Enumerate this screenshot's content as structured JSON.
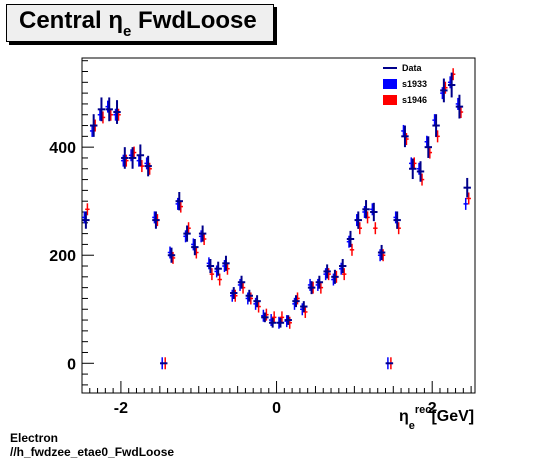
{
  "title": {
    "main": "Central",
    "symbol": "η",
    "subscript": "e",
    "suffix": "FwdLoose"
  },
  "footer": {
    "line1": "Electron",
    "line2": "//h_fwdzee_etae0_FwdLoose"
  },
  "chart_data": {
    "type": "scatter",
    "title": "Central η_e FwdLoose",
    "xlabel": "η_e^rec [GeV]",
    "ylabel": "",
    "xlim": [
      -2.5,
      2.55
    ],
    "ylim": [
      -55,
      565
    ],
    "xticks": [
      -2,
      0,
      2
    ],
    "xtick_labels": [
      "-2",
      "0",
      "2"
    ],
    "yticks": [
      0,
      200,
      400
    ],
    "ytick_labels": [
      "0",
      "200",
      "400"
    ],
    "legend_position": "top-right",
    "legend": [
      {
        "label": "Data",
        "color": "#00008b",
        "style": "line"
      },
      {
        "label": "s1933",
        "color": "#0000ff",
        "style": "box"
      },
      {
        "label": "s1946",
        "color": "#ff0000",
        "style": "box"
      }
    ],
    "x": [
      -2.45,
      -2.35,
      -2.25,
      -2.15,
      -2.05,
      -1.95,
      -1.85,
      -1.75,
      -1.65,
      -1.55,
      -1.45,
      -1.35,
      -1.25,
      -1.15,
      -1.05,
      -0.95,
      -0.85,
      -0.75,
      -0.65,
      -0.55,
      -0.45,
      -0.35,
      -0.25,
      -0.15,
      -0.05,
      0.05,
      0.15,
      0.25,
      0.35,
      0.45,
      0.55,
      0.65,
      0.75,
      0.85,
      0.95,
      1.05,
      1.15,
      1.25,
      1.35,
      1.45,
      1.55,
      1.65,
      1.75,
      1.85,
      1.95,
      2.05,
      2.15,
      2.25,
      2.35,
      2.45
    ],
    "series": [
      {
        "name": "Data",
        "color": "#00008b",
        "values": [
          265,
          440,
          470,
          470,
          465,
          380,
          380,
          385,
          365,
          265,
          0,
          200,
          300,
          240,
          215,
          240,
          180,
          175,
          185,
          130,
          150,
          125,
          115,
          85,
          75,
          75,
          80,
          115,
          105,
          140,
          150,
          170,
          160,
          180,
          230,
          265,
          285,
          280,
          205,
          0,
          265,
          420,
          360,
          355,
          400,
          440,
          505,
          515,
          475,
          325
        ],
        "errors": [
          16,
          21,
          22,
          22,
          22,
          20,
          20,
          20,
          19,
          16,
          0,
          14,
          17,
          15,
          15,
          15,
          13,
          13,
          14,
          11,
          12,
          11,
          11,
          9,
          9,
          9,
          9,
          11,
          10,
          12,
          12,
          13,
          13,
          13,
          15,
          16,
          17,
          17,
          14,
          0,
          16,
          20,
          19,
          19,
          20,
          21,
          22,
          23,
          22,
          18
        ]
      },
      {
        "name": "s1933",
        "color": "#0000ff",
        "values": [
          270,
          430,
          460,
          475,
          460,
          375,
          385,
          375,
          370,
          270,
          0,
          205,
          295,
          235,
          220,
          235,
          185,
          170,
          180,
          125,
          145,
          120,
          110,
          88,
          80,
          75,
          78,
          110,
          100,
          145,
          145,
          165,
          155,
          175,
          225,
          265,
          280,
          285,
          200,
          0,
          270,
          430,
          370,
          360,
          410,
          450,
          500,
          520,
          480,
          295
        ]
      },
      {
        "name": "s1946",
        "color": "#ff0000",
        "values": [
          285,
          440,
          455,
          460,
          460,
          375,
          390,
          365,
          360,
          265,
          0,
          195,
          290,
          250,
          205,
          230,
          165,
          155,
          175,
          125,
          140,
          120,
          105,
          90,
          85,
          85,
          75,
          120,
          95,
          140,
          140,
          165,
          160,
          165,
          210,
          250,
          270,
          250,
          200,
          0,
          250,
          415,
          370,
          340,
          390,
          420,
          510,
          535,
          465,
          305
        ]
      }
    ]
  }
}
